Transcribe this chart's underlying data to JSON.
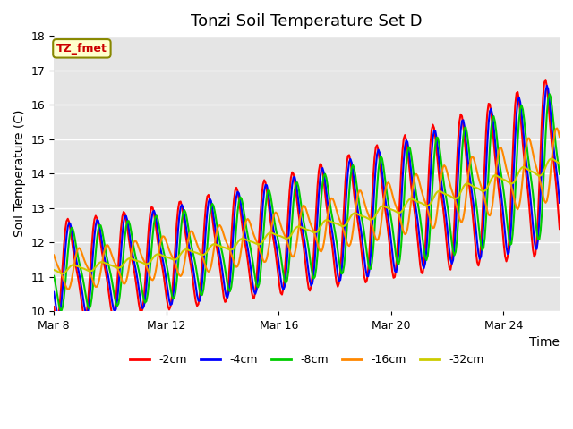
{
  "title": "Tonzi Soil Temperature Set D",
  "xlabel": "Time",
  "ylabel": "Soil Temperature (C)",
  "annotation": "TZ_fmet",
  "ylim": [
    10.0,
    18.0
  ],
  "yticks": [
    10.0,
    11.0,
    12.0,
    13.0,
    14.0,
    15.0,
    16.0,
    17.0,
    18.0
  ],
  "xtick_labels": [
    "Mar 8",
    "Mar 12",
    "Mar 16",
    "Mar 20",
    "Mar 24"
  ],
  "xtick_positions": [
    0,
    4,
    8,
    12,
    16
  ],
  "n_days": 18.0,
  "series_order": [
    "-2cm",
    "-4cm",
    "-8cm",
    "-16cm",
    "-32cm"
  ],
  "series": {
    "-2cm": {
      "color": "#ff0000",
      "amplitude": 1.9,
      "lag": 0.0,
      "amp_scale": 1.0
    },
    "-4cm": {
      "color": "#0000ff",
      "amplitude": 1.75,
      "lag": 0.06,
      "amp_scale": 1.0
    },
    "-8cm": {
      "color": "#00cc00",
      "amplitude": 1.55,
      "lag": 0.15,
      "amp_scale": 1.0
    },
    "-16cm": {
      "color": "#ff8800",
      "amplitude": 0.9,
      "lag": 0.4,
      "amp_scale": 0.85
    },
    "-32cm": {
      "color": "#cccc00",
      "amplitude": 0.3,
      "lag": 1.2,
      "amp_scale": 0.5
    }
  },
  "trend_start": 11.2,
  "trend_end": 14.3,
  "trend_power": 1.4,
  "axes_background": "#e5e5e5",
  "title_fontsize": 13,
  "label_fontsize": 10,
  "tick_fontsize": 9,
  "linewidth": 1.5
}
